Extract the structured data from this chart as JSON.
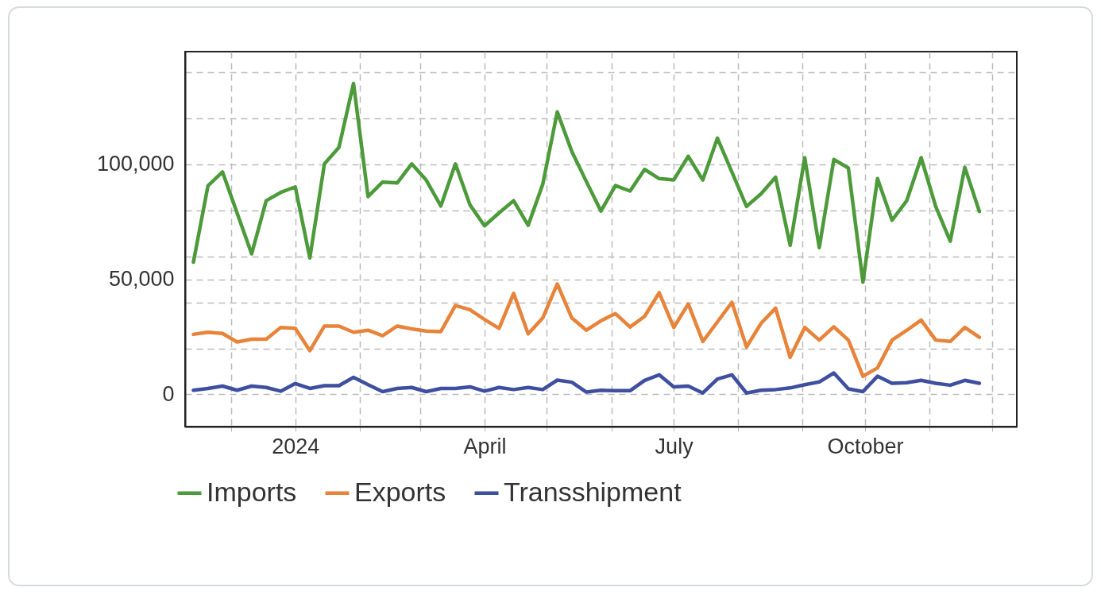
{
  "chart_data": {
    "type": "line",
    "x": [
      "2023-11-13",
      "2023-11-20",
      "2023-11-27",
      "2023-12-04",
      "2023-12-11",
      "2023-12-18",
      "2023-12-25",
      "2024-01-01",
      "2024-01-08",
      "2024-01-15",
      "2024-01-22",
      "2024-01-29",
      "2024-02-05",
      "2024-02-12",
      "2024-02-19",
      "2024-02-26",
      "2024-03-04",
      "2024-03-11",
      "2024-03-18",
      "2024-03-25",
      "2024-04-01",
      "2024-04-08",
      "2024-04-15",
      "2024-04-22",
      "2024-04-29",
      "2024-05-06",
      "2024-05-13",
      "2024-05-20",
      "2024-05-27",
      "2024-06-03",
      "2024-06-10",
      "2024-06-17",
      "2024-06-24",
      "2024-07-01",
      "2024-07-08",
      "2024-07-15",
      "2024-07-22",
      "2024-07-29",
      "2024-08-05",
      "2024-08-12",
      "2024-08-19",
      "2024-08-26",
      "2024-09-02",
      "2024-09-09",
      "2024-09-16",
      "2024-09-23",
      "2024-09-30",
      "2024-10-07",
      "2024-10-14",
      "2024-10-21",
      "2024-10-28",
      "2024-11-04",
      "2024-11-11",
      "2024-11-18",
      "2024-11-25"
    ],
    "series": [
      {
        "name": "Imports",
        "color": "#4c9a3a",
        "values": [
          57500,
          90700,
          96700,
          78900,
          61100,
          84200,
          87800,
          90200,
          59300,
          100200,
          107400,
          135200,
          86000,
          92300,
          91900,
          100200,
          93100,
          81900,
          100200,
          82400,
          73300,
          78900,
          84200,
          73500,
          91300,
          122800,
          105600,
          92500,
          79700,
          90800,
          88400,
          97800,
          93800,
          93200,
          103500,
          93200,
          111400,
          96600,
          81700,
          87200,
          94400,
          64800,
          102900,
          63800,
          102100,
          98400,
          48800,
          93800,
          75700,
          84100,
          102900,
          81700,
          66600,
          98700,
          79500
        ]
      },
      {
        "name": "Exports",
        "color": "#e8833a",
        "values": [
          26100,
          27000,
          26500,
          22800,
          24000,
          24000,
          29100,
          28700,
          19000,
          29700,
          29700,
          27000,
          27900,
          25500,
          29700,
          28500,
          27500,
          27300,
          38600,
          36800,
          32600,
          28700,
          43900,
          26300,
          33200,
          48000,
          33200,
          27900,
          32000,
          35100,
          29300,
          33900,
          44200,
          29100,
          39300,
          23000,
          31500,
          40000,
          20600,
          30900,
          37500,
          16100,
          29100,
          23600,
          29400,
          23600,
          7900,
          11500,
          23600,
          27800,
          32300,
          23600,
          23000,
          29100,
          24800
        ]
      },
      {
        "name": "Transshipment",
        "color": "#3f4fa0",
        "values": [
          1800,
          2600,
          3600,
          1800,
          3600,
          3000,
          1400,
          4700,
          2600,
          3800,
          3800,
          7400,
          4200,
          1200,
          2600,
          3000,
          1200,
          2600,
          2600,
          3300,
          1400,
          3000,
          2100,
          3000,
          2100,
          6200,
          5300,
          1000,
          1800,
          1600,
          1600,
          6100,
          8500,
          3300,
          3600,
          600,
          6700,
          8500,
          600,
          1800,
          2100,
          2800,
          4200,
          5400,
          9300,
          2400,
          1200,
          7900,
          4800,
          5100,
          6100,
          4800,
          4000,
          6100,
          4800
        ]
      }
    ],
    "xlim": [
      "2023-11-09",
      "2024-12-13"
    ],
    "xticks": [
      {
        "value": "2023-12-01",
        "label": null
      },
      {
        "value": "2024-01-01",
        "label": "2024"
      },
      {
        "value": "2024-02-01",
        "label": null
      },
      {
        "value": "2024-03-01",
        "label": null
      },
      {
        "value": "2024-04-01",
        "label": "April"
      },
      {
        "value": "2024-05-01",
        "label": null
      },
      {
        "value": "2024-06-01",
        "label": null
      },
      {
        "value": "2024-07-01",
        "label": "July"
      },
      {
        "value": "2024-08-01",
        "label": null
      },
      {
        "value": "2024-09-01",
        "label": null
      },
      {
        "value": "2024-10-01",
        "label": "October"
      },
      {
        "value": "2024-11-01",
        "label": null
      },
      {
        "value": "2024-12-01",
        "label": null
      }
    ],
    "ylim": [
      -14000,
      149000
    ],
    "yticks": [
      {
        "value": 0,
        "label": "0"
      },
      {
        "value": 20000,
        "label": null
      },
      {
        "value": 40000,
        "label": null
      },
      {
        "value": 50000,
        "label": "50,000"
      },
      {
        "value": 60000,
        "label": null
      },
      {
        "value": 80000,
        "label": null
      },
      {
        "value": 100000,
        "label": "100,000"
      },
      {
        "value": 120000,
        "label": null
      },
      {
        "value": 140000,
        "label": null
      }
    ],
    "grid": true,
    "legend": "bottom",
    "line_style": "solid"
  }
}
